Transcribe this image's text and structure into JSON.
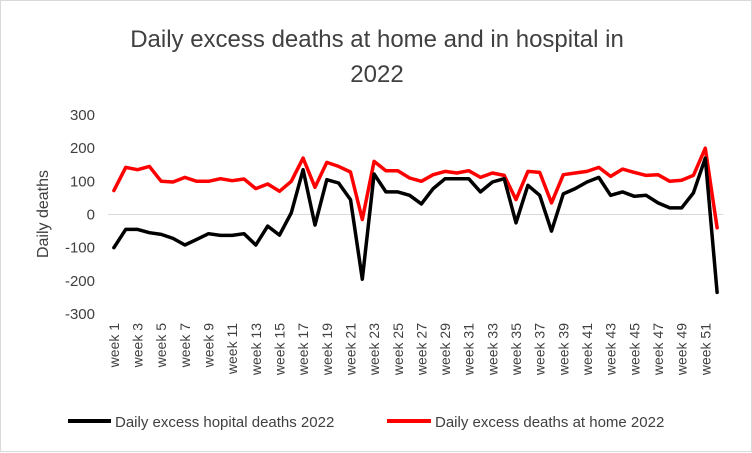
{
  "chart_data": {
    "type": "line",
    "title_lines": [
      "Daily excess deaths at home and in hospital in",
      "2022"
    ],
    "ylabel": "Daily deaths",
    "xlabel": "",
    "ylim": [
      -300,
      300
    ],
    "yticks": [
      -300,
      -200,
      -100,
      0,
      100,
      200,
      300
    ],
    "grid": false,
    "legend_position": "bottom",
    "categories": [
      "week 1",
      "week 2",
      "week 3",
      "week 4",
      "week 5",
      "week 6",
      "week 7",
      "week 8",
      "week 9",
      "week 10",
      "week 11",
      "week 12",
      "week 13",
      "week 14",
      "week 15",
      "week 16",
      "week 17",
      "week 18",
      "week 19",
      "week 20",
      "week 21",
      "week 22",
      "week 23",
      "week 24",
      "week 25",
      "week 26",
      "week 27",
      "week 28",
      "week 29",
      "week 30",
      "week 31",
      "week 32",
      "week 33",
      "week 34",
      "week 35",
      "week 36",
      "week 37",
      "week 38",
      "week 39",
      "week 40",
      "week 41",
      "week 42",
      "week 43",
      "week 44",
      "week 45",
      "week 46",
      "week 47",
      "week 48",
      "week 49",
      "week 50",
      "week 51",
      "week 52"
    ],
    "tick_labels": [
      "week 1",
      "week 3",
      "week 5",
      "week 7",
      "week 9",
      "week 11",
      "week 13",
      "week 15",
      "week 17",
      "week 19",
      "week 21",
      "week 23",
      "week 25",
      "week 27",
      "week 29",
      "week 31",
      "week 33",
      "week 35",
      "week 37",
      "week 39",
      "week 41",
      "week 43",
      "week 45",
      "week 47",
      "week 49",
      "week 51"
    ],
    "series": [
      {
        "name": "Daily excess hopital deaths 2022",
        "color": "#000000",
        "values": [
          -100,
          -45,
          -45,
          -55,
          -60,
          -72,
          -92,
          -75,
          -58,
          -63,
          -63,
          -58,
          -92,
          -35,
          -62,
          5,
          135,
          -32,
          105,
          95,
          45,
          -195,
          122,
          68,
          68,
          58,
          32,
          78,
          108,
          108,
          108,
          68,
          98,
          108,
          -25,
          88,
          58,
          -50,
          62,
          78,
          98,
          112,
          58,
          68,
          55,
          58,
          35,
          20,
          20,
          65,
          170,
          -235
        ]
      },
      {
        "name": "Daily excess deaths at home 2022",
        "color": "#ff0000",
        "values": [
          72,
          142,
          135,
          145,
          100,
          98,
          112,
          100,
          100,
          108,
          102,
          107,
          78,
          92,
          70,
          100,
          170,
          82,
          157,
          145,
          128,
          -15,
          160,
          132,
          132,
          110,
          100,
          120,
          130,
          125,
          132,
          112,
          125,
          118,
          45,
          130,
          127,
          35,
          120,
          125,
          130,
          142,
          115,
          137,
          127,
          118,
          120,
          100,
          103,
          118,
          200,
          -40
        ]
      }
    ]
  }
}
